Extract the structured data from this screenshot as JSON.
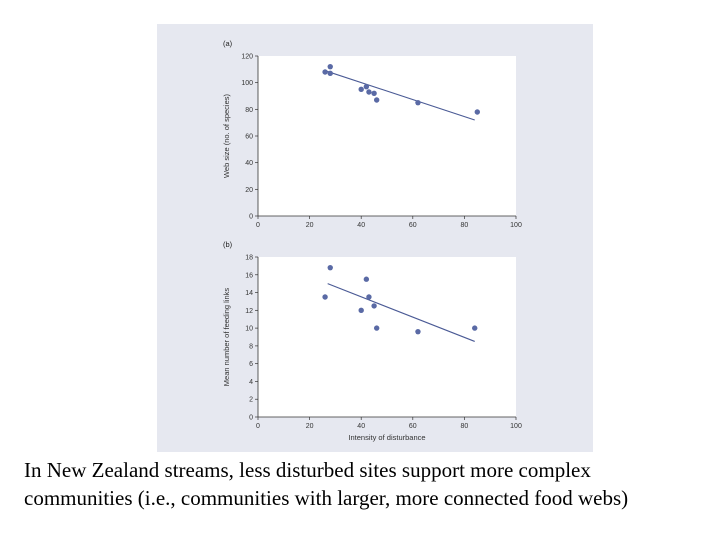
{
  "colors": {
    "panel_background": "#e6e8f0",
    "plot_background": "#ffffff",
    "point": "#5a6aa5",
    "trend_line": "#4a5a95",
    "axis": "#333333"
  },
  "caption": "In New Zealand streams, less disturbed sites support more complex communities (i.e., communities with larger, more connected food webs)",
  "chart_data": [
    {
      "type": "scatter",
      "panel_label": "(a)",
      "title": "",
      "xlabel": "",
      "ylabel": "Web size (no. of species)",
      "xlim": [
        0,
        100
      ],
      "ylim": [
        0,
        120
      ],
      "x_ticks": [
        0,
        20,
        40,
        60,
        80,
        100
      ],
      "y_ticks": [
        0,
        20,
        40,
        60,
        80,
        100,
        120
      ],
      "points": [
        {
          "x": 26,
          "y": 108
        },
        {
          "x": 28,
          "y": 107
        },
        {
          "x": 28,
          "y": 112
        },
        {
          "x": 40,
          "y": 95
        },
        {
          "x": 42,
          "y": 97
        },
        {
          "x": 43,
          "y": 93
        },
        {
          "x": 45,
          "y": 92
        },
        {
          "x": 46,
          "y": 87
        },
        {
          "x": 62,
          "y": 85
        },
        {
          "x": 85,
          "y": 78
        }
      ],
      "trend_line": {
        "x": [
          26,
          84
        ],
        "y": [
          109,
          72
        ]
      }
    },
    {
      "type": "scatter",
      "panel_label": "(b)",
      "title": "",
      "xlabel": "Intensity of disturbance",
      "ylabel": "Mean number of feeding links",
      "xlim": [
        0,
        100
      ],
      "ylim": [
        0,
        18
      ],
      "x_ticks": [
        0,
        20,
        40,
        60,
        80,
        100
      ],
      "y_ticks": [
        0,
        2,
        4,
        6,
        8,
        10,
        12,
        14,
        16,
        18
      ],
      "points": [
        {
          "x": 26,
          "y": 13.5
        },
        {
          "x": 28,
          "y": 16.8
        },
        {
          "x": 40,
          "y": 12
        },
        {
          "x": 42,
          "y": 15.5
        },
        {
          "x": 43,
          "y": 13.5
        },
        {
          "x": 45,
          "y": 12.5
        },
        {
          "x": 46,
          "y": 10
        },
        {
          "x": 62,
          "y": 9.6
        },
        {
          "x": 84,
          "y": 10
        }
      ],
      "trend_line": {
        "x": [
          27,
          84
        ],
        "y": [
          15,
          8.5
        ]
      }
    }
  ]
}
